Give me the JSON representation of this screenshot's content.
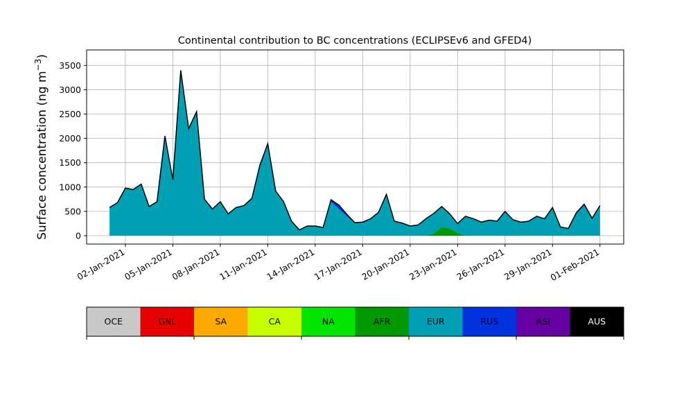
{
  "chart_data": {
    "type": "stacked_area",
    "title": "Continental contribution to BC concentrations (ECLIPSEv6 and GFED4)",
    "ylabel": "Surface concentration (ng m",
    "ylabel_sup": "−3",
    "ylabel_end": ")",
    "x": [
      1,
      1.5,
      2,
      2.5,
      3,
      3.5,
      4,
      4.5,
      5,
      5.5,
      6,
      6.5,
      7,
      7.5,
      8,
      8.5,
      9,
      9.5,
      10,
      10.5,
      11,
      11.5,
      12,
      12.5,
      13,
      13.5,
      14,
      14.5,
      15,
      15.5,
      16,
      16.5,
      17,
      17.5,
      18,
      18.5,
      19,
      19.5,
      20,
      20.5,
      21,
      21.5,
      22,
      22.5,
      23,
      23.5,
      24,
      24.5,
      25,
      25.5,
      26,
      26.5,
      27,
      27.5,
      28,
      28.5,
      29,
      29.5,
      30,
      30.5,
      31,
      31.5,
      32
    ],
    "series": [
      {
        "name": "AFR",
        "color": "#009900",
        "values": [
          0,
          0,
          0,
          0,
          0,
          0,
          0,
          0,
          0,
          0,
          0,
          0,
          0,
          0,
          0,
          0,
          0,
          0,
          0,
          0,
          0,
          0,
          0,
          0,
          0,
          0,
          0,
          0,
          0,
          0,
          0,
          0,
          0,
          0,
          0,
          0,
          0,
          0,
          0,
          0,
          0,
          50,
          180,
          150,
          60,
          0,
          0,
          0,
          0,
          0,
          0,
          0,
          0,
          0,
          0,
          0,
          0,
          0,
          0,
          0,
          0,
          0,
          0
        ]
      },
      {
        "name": "EUR",
        "color": "#00a0b4",
        "values": [
          580,
          680,
          980,
          950,
          1060,
          600,
          700,
          2050,
          1150,
          3400,
          2200,
          2550,
          750,
          550,
          700,
          450,
          580,
          620,
          750,
          1400,
          1850,
          900,
          700,
          300,
          120,
          200,
          200,
          170,
          700,
          550,
          400,
          260,
          280,
          350,
          480,
          850,
          300,
          260,
          200,
          220,
          350,
          410,
          420,
          300,
          190,
          400,
          350,
          280,
          320,
          300,
          500,
          330,
          280,
          300,
          400,
          350,
          580,
          180,
          150,
          450,
          620,
          350,
          620
        ]
      },
      {
        "name": "RUS",
        "color": "#0033dd",
        "values": [
          0,
          0,
          0,
          0,
          0,
          0,
          0,
          0,
          0,
          0,
          0,
          0,
          0,
          0,
          0,
          0,
          0,
          0,
          20,
          50,
          40,
          20,
          0,
          0,
          0,
          0,
          0,
          0,
          40,
          80,
          40,
          10,
          0,
          0,
          0,
          0,
          0,
          0,
          0,
          0,
          0,
          0,
          0,
          0,
          0,
          0,
          0,
          0,
          0,
          0,
          0,
          0,
          0,
          0,
          0,
          0,
          0,
          0,
          0,
          20,
          30,
          10,
          0
        ]
      }
    ],
    "xlim": [
      -0.45,
      33.5
    ],
    "xticks": [
      {
        "value": 2,
        "label": "02-Jan-2021"
      },
      {
        "value": 5,
        "label": "05-Jan-2021"
      },
      {
        "value": 8,
        "label": "08-Jan-2021"
      },
      {
        "value": 11,
        "label": "11-Jan-2021"
      },
      {
        "value": 14,
        "label": "14-Jan-2021"
      },
      {
        "value": 17,
        "label": "17-Jan-2021"
      },
      {
        "value": 20,
        "label": "20-Jan-2021"
      },
      {
        "value": 23,
        "label": "23-Jan-2021"
      },
      {
        "value": 26,
        "label": "26-Jan-2021"
      },
      {
        "value": 29,
        "label": "29-Jan-2021"
      },
      {
        "value": 32,
        "label": "01-Feb-2021"
      }
    ],
    "ylim": [
      -171,
      3818
    ],
    "yticks": [
      0,
      500,
      1000,
      1500,
      2000,
      2500,
      3000,
      3500
    ],
    "grid": true,
    "legend": [
      {
        "name": "OCE",
        "color": "#c8c8c8"
      },
      {
        "name": "GNL",
        "color": "#e60000"
      },
      {
        "name": "SA",
        "color": "#ffaa00"
      },
      {
        "name": "CA",
        "color": "#c8ff00"
      },
      {
        "name": "NA",
        "color": "#00e600"
      },
      {
        "name": "AFR",
        "color": "#009900"
      },
      {
        "name": "EUR",
        "color": "#00a0b4"
      },
      {
        "name": "RUS",
        "color": "#0033dd"
      },
      {
        "name": "ASI",
        "color": "#6600a0"
      },
      {
        "name": "AUS",
        "color": "#000000"
      }
    ]
  }
}
